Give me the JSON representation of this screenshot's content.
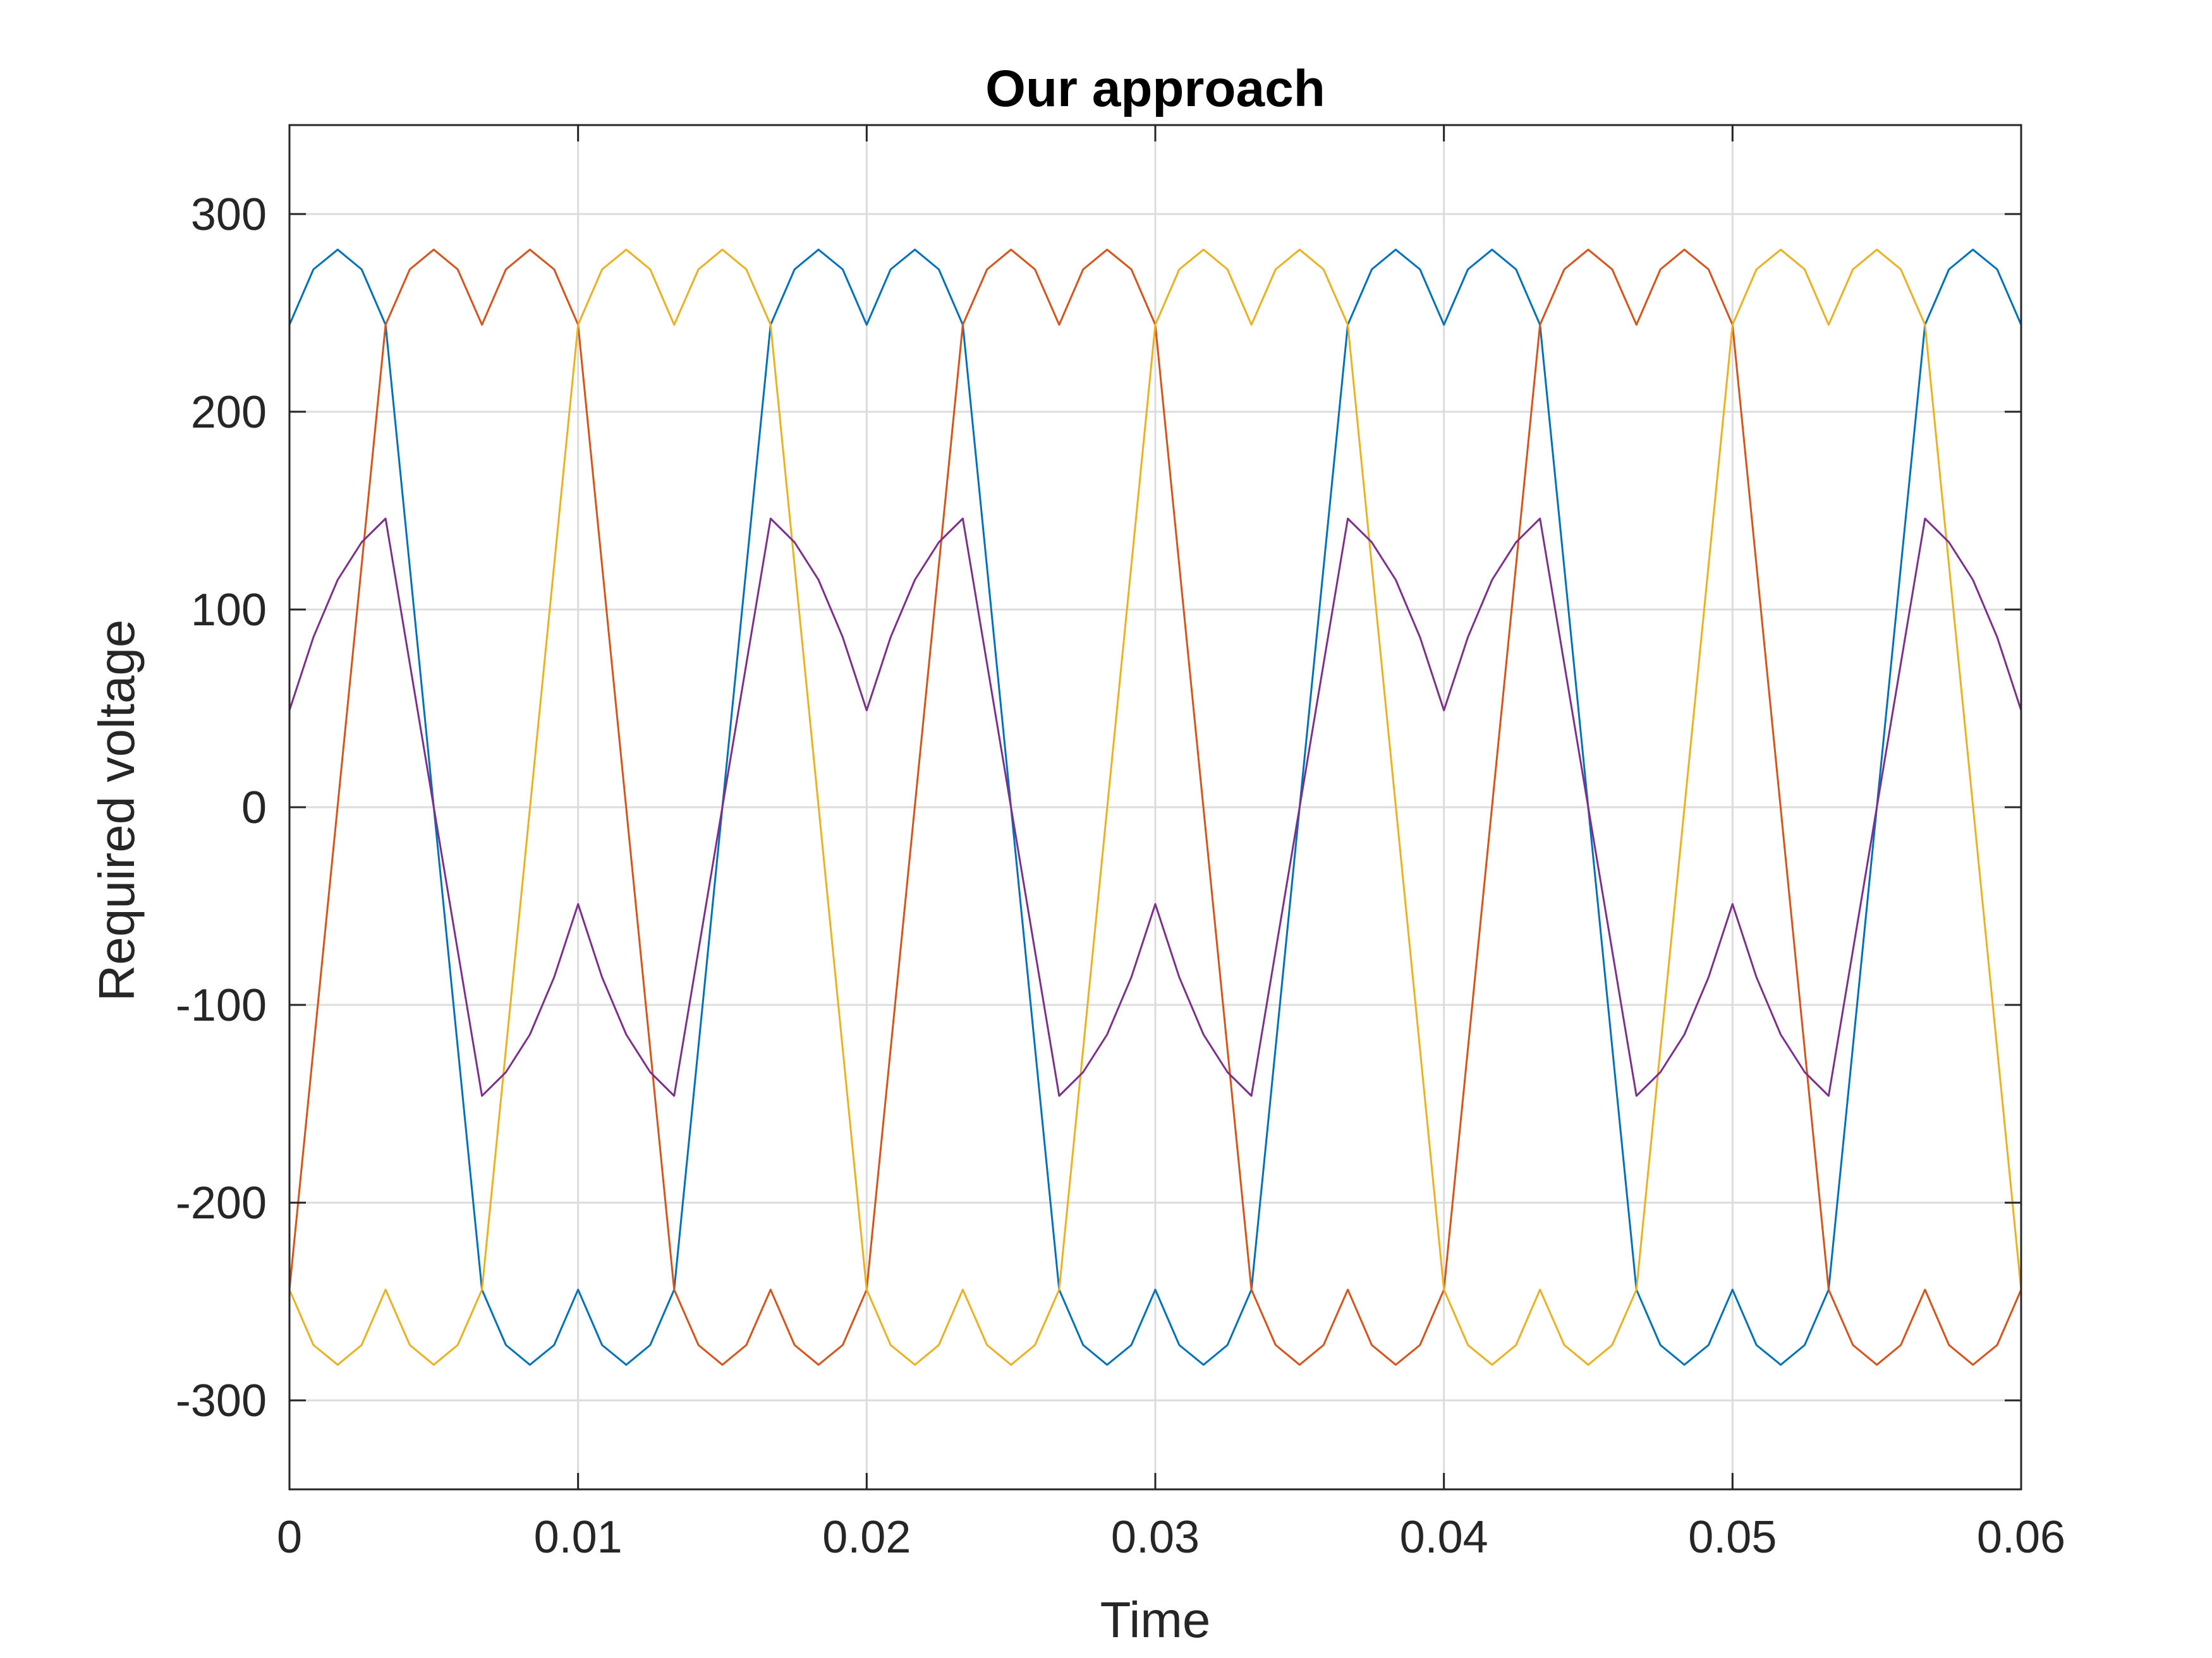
{
  "chart_data": {
    "type": "line",
    "title": "Our approach",
    "xlabel": "Time",
    "ylabel": "Required voltage",
    "xlim": [
      0,
      0.06
    ],
    "ylim": [
      -345,
      345
    ],
    "xticks": [
      0,
      0.01,
      0.02,
      0.03,
      0.04,
      0.05,
      0.06
    ],
    "xtick_labels": [
      "0",
      "0.01",
      "0.02",
      "0.03",
      "0.04",
      "0.05",
      "0.06"
    ],
    "yticks": [
      -300,
      -200,
      -100,
      0,
      100,
      200,
      300
    ],
    "ytick_labels": [
      "-300",
      "-200",
      "-100",
      "0",
      "100",
      "200",
      "300"
    ],
    "grid": true,
    "legend": "none",
    "series": [
      {
        "color": "#0072BD",
        "x": [
          0,
          0.00083,
          0.00167,
          0.0025,
          0.00333,
          0.00667,
          0.0075,
          0.00833,
          0.00917,
          0.01,
          0.01083,
          0.01167,
          0.0125,
          0.01333,
          0.01667,
          0.0175,
          0.01833,
          0.01917,
          0.02,
          0.02083,
          0.02167,
          0.0225,
          0.02333,
          0.02667,
          0.0275,
          0.02833,
          0.02917,
          0.03,
          0.03083,
          0.03167,
          0.0325,
          0.03333,
          0.03667,
          0.0375,
          0.03833,
          0.03917,
          0.04,
          0.04083,
          0.04167,
          0.0425,
          0.04333,
          0.04667,
          0.0475,
          0.04833,
          0.04917,
          0.05,
          0.05083,
          0.05167,
          0.0525,
          0.05333,
          0.05667,
          0.0575,
          0.05833,
          0.05917,
          0.06
        ],
        "y": [
          244,
          272,
          282,
          272,
          244,
          -244,
          -272,
          -282,
          -272,
          -244,
          -272,
          -282,
          -272,
          -244,
          244,
          272,
          282,
          272,
          244,
          272,
          282,
          272,
          244,
          -244,
          -272,
          -282,
          -272,
          -244,
          -272,
          -282,
          -272,
          -244,
          244,
          272,
          282,
          272,
          244,
          272,
          282,
          272,
          244,
          -244,
          -272,
          -282,
          -272,
          -244,
          -272,
          -282,
          -272,
          -244,
          244,
          272,
          282,
          272,
          244
        ]
      },
      {
        "color": "#D95319",
        "x": [
          0,
          0.00333,
          0.00417,
          0.005,
          0.00583,
          0.00667,
          0.0075,
          0.00833,
          0.00917,
          0.01,
          0.01333,
          0.01417,
          0.015,
          0.01583,
          0.01667,
          0.0175,
          0.01833,
          0.01917,
          0.02,
          0.02333,
          0.02417,
          0.025,
          0.02583,
          0.02667,
          0.0275,
          0.02833,
          0.02917,
          0.03,
          0.03333,
          0.03417,
          0.035,
          0.03583,
          0.03667,
          0.0375,
          0.03833,
          0.03917,
          0.04,
          0.04333,
          0.04417,
          0.045,
          0.04583,
          0.04667,
          0.0475,
          0.04833,
          0.04917,
          0.05,
          0.05333,
          0.05417,
          0.055,
          0.05583,
          0.05667,
          0.0575,
          0.05833,
          0.05917,
          0.06
        ],
        "y": [
          -244,
          244,
          272,
          282,
          272,
          244,
          272,
          282,
          272,
          244,
          -244,
          -272,
          -282,
          -272,
          -244,
          -272,
          -282,
          -272,
          -244,
          244,
          272,
          282,
          272,
          244,
          272,
          282,
          272,
          244,
          -244,
          -272,
          -282,
          -272,
          -244,
          -272,
          -282,
          -272,
          -244,
          244,
          272,
          282,
          272,
          244,
          272,
          282,
          272,
          244,
          -244,
          -272,
          -282,
          -272,
          -244,
          -272,
          -282,
          -272,
          -244
        ]
      },
      {
        "color": "#EDB120",
        "x": [
          0,
          0.00083,
          0.00167,
          0.0025,
          0.00333,
          0.00417,
          0.005,
          0.00583,
          0.00667,
          0.01,
          0.01083,
          0.01167,
          0.0125,
          0.01333,
          0.01417,
          0.015,
          0.01583,
          0.01667,
          0.02,
          0.02083,
          0.02167,
          0.0225,
          0.02333,
          0.02417,
          0.025,
          0.02583,
          0.02667,
          0.03,
          0.03083,
          0.03167,
          0.0325,
          0.03333,
          0.03417,
          0.035,
          0.03583,
          0.03667,
          0.04,
          0.04083,
          0.04167,
          0.0425,
          0.04333,
          0.04417,
          0.045,
          0.04583,
          0.04667,
          0.05,
          0.05083,
          0.05167,
          0.0525,
          0.05333,
          0.05417,
          0.055,
          0.05583,
          0.05667,
          0.06
        ],
        "y": [
          -244,
          -272,
          -282,
          -272,
          -244,
          -272,
          -282,
          -272,
          -244,
          244,
          272,
          282,
          272,
          244,
          272,
          282,
          272,
          244,
          -244,
          -272,
          -282,
          -272,
          -244,
          -272,
          -282,
          -272,
          -244,
          244,
          272,
          282,
          272,
          244,
          272,
          282,
          272,
          244,
          -244,
          -272,
          -282,
          -272,
          -244,
          -272,
          -282,
          -272,
          -244,
          244,
          272,
          282,
          272,
          244,
          272,
          282,
          272,
          244,
          -244
        ]
      },
      {
        "color": "#7E2F8E",
        "x": [
          0,
          0.00083,
          0.00167,
          0.0025,
          0.00333,
          0.00667,
          0.0075,
          0.00833,
          0.00917,
          0.01,
          0.01083,
          0.01167,
          0.0125,
          0.01333,
          0.01667,
          0.0175,
          0.01833,
          0.01917,
          0.02,
          0.02083,
          0.02167,
          0.0225,
          0.02333,
          0.02667,
          0.0275,
          0.02833,
          0.02917,
          0.03,
          0.03083,
          0.03167,
          0.0325,
          0.03333,
          0.03667,
          0.0375,
          0.03833,
          0.03917,
          0.04,
          0.04083,
          0.04167,
          0.0425,
          0.04333,
          0.04667,
          0.0475,
          0.04833,
          0.04917,
          0.05,
          0.05083,
          0.05167,
          0.0525,
          0.05333,
          0.05667,
          0.0575,
          0.05833,
          0.05917,
          0.06
        ],
        "y": [
          49,
          86,
          115,
          134,
          146,
          -146,
          -134,
          -115,
          -86,
          -49,
          -86,
          -115,
          -134,
          -146,
          146,
          134,
          115,
          86,
          49,
          86,
          115,
          134,
          146,
          -146,
          -134,
          -115,
          -86,
          -49,
          -86,
          -115,
          -134,
          -146,
          146,
          134,
          115,
          86,
          49,
          86,
          115,
          134,
          146,
          -146,
          -134,
          -115,
          -86,
          -49,
          -86,
          -115,
          -134,
          -146,
          146,
          134,
          115,
          86,
          49
        ]
      }
    ]
  }
}
